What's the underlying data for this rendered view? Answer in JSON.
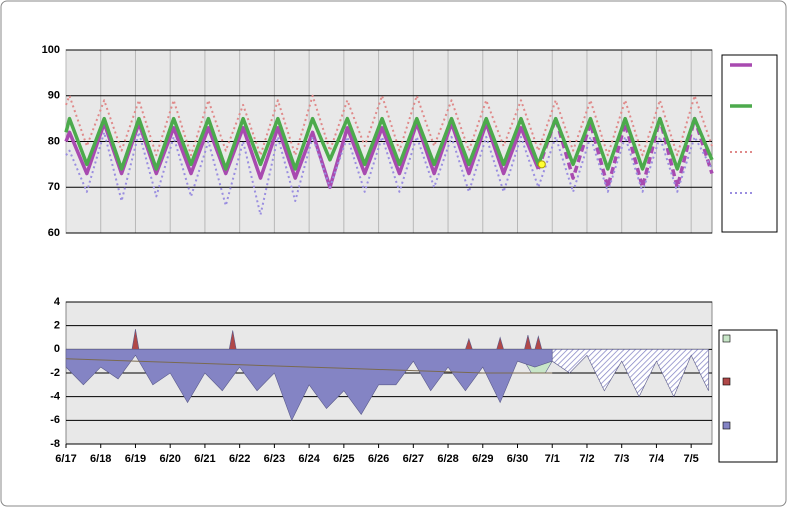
{
  "chart_data": [
    {
      "type": "line",
      "x": [
        0,
        0.1,
        0.6,
        1.1,
        1.6,
        2.1,
        2.6,
        3.1,
        3.6,
        4.1,
        4.6,
        5.1,
        5.6,
        6.1,
        6.6,
        7.1,
        7.6,
        8.1,
        8.6,
        9.1,
        9.6,
        10.1,
        10.6,
        11.1,
        11.6,
        12.1,
        12.6,
        13.1,
        13.6,
        14.1,
        14.6,
        15.1,
        15.6,
        16.1,
        16.6,
        17.1,
        17.6,
        18.1,
        18.6
      ],
      "series": [
        {
          "color": "#a84ab0",
          "style": "solid",
          "width": 3.5,
          "dashed_from_x": 13.6,
          "values": [
            80,
            82,
            73,
            84,
            73,
            84,
            73,
            83,
            73,
            83,
            73,
            83,
            72,
            83,
            72,
            82,
            70,
            83,
            73,
            83,
            73,
            84,
            73,
            84,
            73,
            84,
            73,
            83,
            74,
            85,
            72,
            84,
            70,
            84,
            70,
            85,
            70,
            85,
            73
          ]
        },
        {
          "color": "#4caa4c",
          "style": "solid",
          "width": 3.5,
          "values": [
            82,
            85,
            75,
            85,
            74,
            85,
            74,
            85,
            75,
            85,
            74,
            85,
            75,
            85,
            74,
            85,
            76,
            85,
            75,
            85,
            75,
            85,
            75,
            85,
            75,
            85,
            75,
            85,
            75,
            85,
            75,
            85,
            74,
            85,
            74,
            85,
            74,
            85,
            76
          ]
        },
        {
          "color": "#e08a8a",
          "style": "dotted",
          "width": 2,
          "values": [
            88,
            90,
            79,
            89,
            78,
            89,
            77,
            89,
            77,
            89,
            78,
            88,
            77,
            89,
            77,
            90,
            78,
            89,
            79,
            90,
            78,
            90,
            79,
            89,
            78,
            89,
            79,
            89,
            78,
            89,
            78,
            89,
            77,
            89,
            77,
            89,
            77,
            90,
            79
          ]
        },
        {
          "color": "#9a8ee0",
          "style": "dotted",
          "width": 2,
          "values": [
            77,
            78,
            69,
            82,
            67,
            82,
            68,
            81,
            68,
            80,
            66,
            80,
            64,
            81,
            67,
            81,
            70,
            81,
            69,
            81,
            69,
            81,
            70,
            81,
            69,
            81,
            69,
            81,
            70,
            81,
            69,
            81,
            69,
            81,
            69,
            81,
            69,
            81,
            74
          ]
        }
      ],
      "marker": {
        "x": 13.7,
        "y": 75,
        "color": "#ffff33"
      },
      "xlim": [
        0,
        18.6
      ],
      "xticks": [
        0,
        1,
        2,
        3,
        4,
        5,
        6,
        7,
        8,
        9,
        10,
        11,
        12,
        13,
        14,
        15,
        16,
        17,
        18
      ],
      "ylim": [
        60,
        100
      ],
      "yticks": [
        60,
        70,
        80,
        90,
        100
      ],
      "grid": true
    },
    {
      "type": "area",
      "series": [
        {
          "color": "#c8e6c8",
          "kind": "area",
          "x": [
            9.8,
            10.2,
            10.6,
            11,
            11.4,
            11.8,
            12.2,
            12.6,
            13,
            13.4,
            13.8,
            14.2
          ],
          "values": [
            0,
            -1.5,
            0,
            -1,
            -2,
            0,
            -2,
            -1,
            0,
            -2,
            -2,
            0
          ]
        },
        {
          "color": "#b04848",
          "kind": "area",
          "x": [
            1.9,
            2.0,
            2.1,
            4.7,
            4.8,
            4.9,
            11.5,
            11.6,
            11.7,
            12.4,
            12.5,
            12.6,
            13.2,
            13.3,
            13.4,
            13.5,
            13.6,
            13.7
          ],
          "values": [
            0,
            1.7,
            0,
            0,
            1.6,
            0,
            0,
            0.9,
            0,
            0,
            1.0,
            0,
            0,
            1.2,
            0,
            0,
            1.1,
            0
          ]
        },
        {
          "color": "#8484c4",
          "kind": "area",
          "hatched_from_x": 14,
          "x": [
            0,
            0.5,
            1,
            1.5,
            2,
            2.5,
            3,
            3.5,
            4,
            4.5,
            5,
            5.5,
            6,
            6.5,
            7,
            7.5,
            8,
            8.5,
            9,
            9.5,
            10,
            10.5,
            11,
            11.5,
            12,
            12.5,
            13,
            13.5,
            14,
            14.5,
            15,
            15.5,
            16,
            16.5,
            17,
            17.5,
            18,
            18.5
          ],
          "values": [
            -1.5,
            -3,
            -1.5,
            -2.5,
            -0.5,
            -3,
            -2,
            -4.5,
            -2,
            -3.5,
            -1.5,
            -3.5,
            -2,
            -6,
            -3,
            -5,
            -3.5,
            -5.5,
            -3,
            -3,
            -1,
            -3.5,
            -1.5,
            -3.5,
            -1.5,
            -4.5,
            -1,
            -1.5,
            -1,
            -2,
            -0.5,
            -3.5,
            -1,
            -4,
            -1,
            -4,
            -0.5,
            -3.5
          ]
        },
        {
          "color": "#7a6a50",
          "kind": "line",
          "x": [
            0,
            4,
            8,
            10,
            12,
            14
          ],
          "values": [
            -0.8,
            -1.2,
            -1.6,
            -1.8,
            -2,
            -2
          ]
        }
      ],
      "xlim": [
        0,
        18.6
      ],
      "xticks": [
        {
          "value": 0,
          "label": "6/17"
        },
        {
          "value": 1,
          "label": "6/18"
        },
        {
          "value": 2,
          "label": "6/19"
        },
        {
          "value": 3,
          "label": "6/20"
        },
        {
          "value": 4,
          "label": "6/21"
        },
        {
          "value": 5,
          "label": "6/22"
        },
        {
          "value": 6,
          "label": "6/23"
        },
        {
          "value": 7,
          "label": "6/24"
        },
        {
          "value": 8,
          "label": "6/25"
        },
        {
          "value": 9,
          "label": "6/26"
        },
        {
          "value": 10,
          "label": "6/27"
        },
        {
          "value": 11,
          "label": "6/28"
        },
        {
          "value": 12,
          "label": "6/29"
        },
        {
          "value": 13,
          "label": "6/30"
        },
        {
          "value": 14,
          "label": "7/1"
        },
        {
          "value": 15,
          "label": "7/2"
        },
        {
          "value": 16,
          "label": "7/3"
        },
        {
          "value": 17,
          "label": "7/4"
        },
        {
          "value": 18,
          "label": "7/5"
        }
      ],
      "ylim": [
        -8,
        4
      ],
      "yticks": [
        -8,
        -6,
        -4,
        -2,
        0,
        2,
        4
      ],
      "grid": true
    }
  ]
}
